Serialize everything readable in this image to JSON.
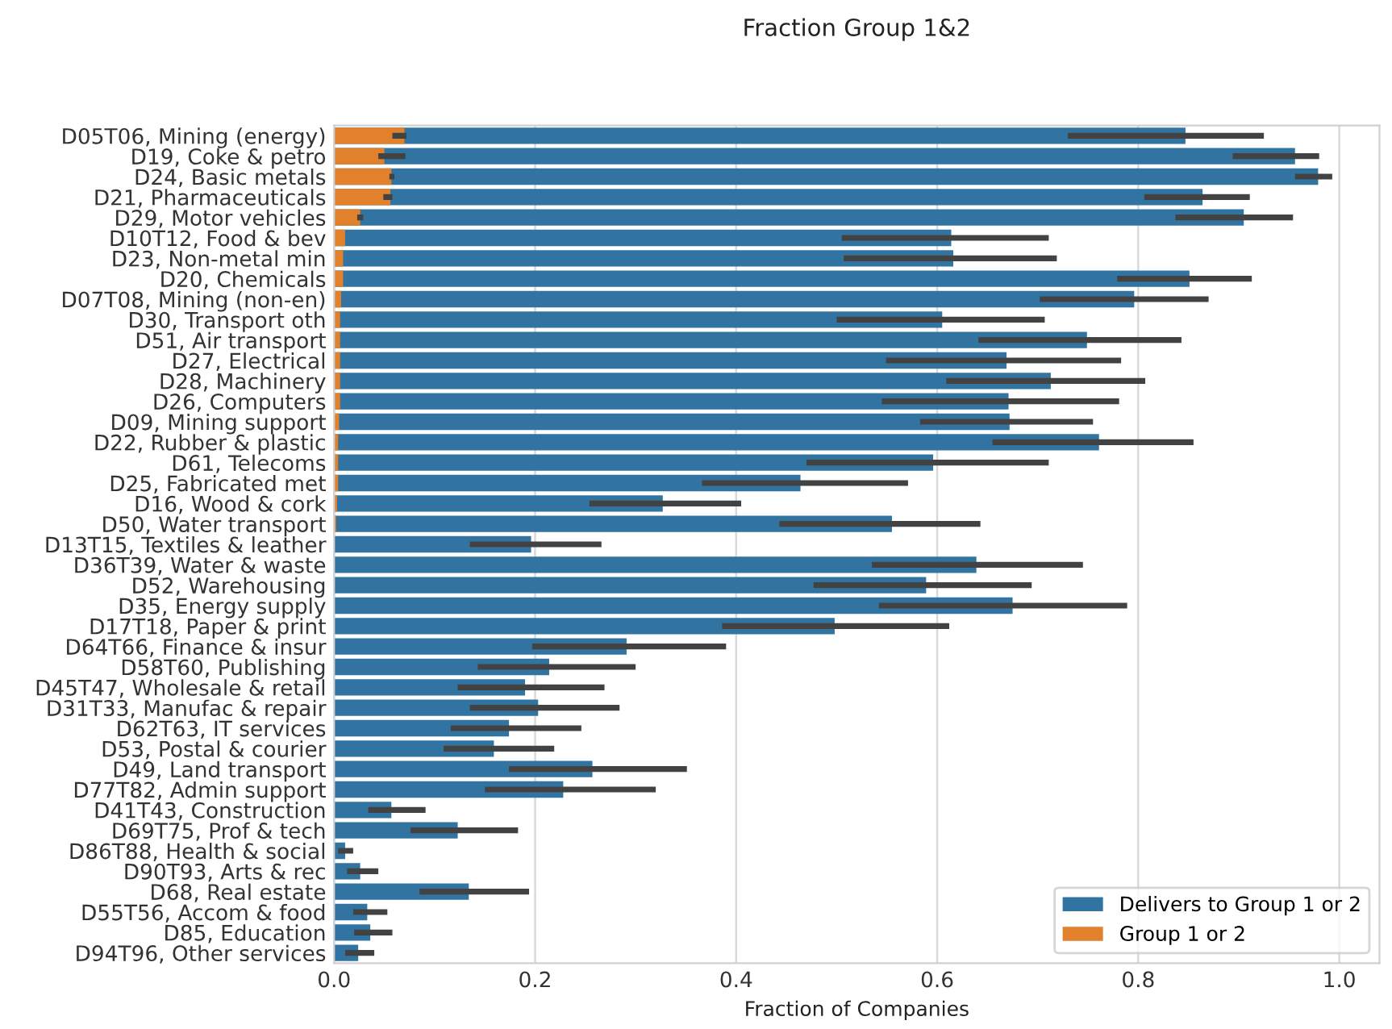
{
  "chart_data": {
    "type": "bar",
    "orientation": "horizontal",
    "title": "Fraction Group 1&2",
    "xlabel": "Fraction of Companies",
    "categories": [
      "D05T06, Mining (energy)",
      "D19, Coke & petro",
      "D24, Basic metals",
      "D21, Pharmaceuticals",
      "D29, Motor vehicles",
      "D10T12, Food & bev",
      "D23, Non-metal min",
      "D20, Chemicals",
      "D07T08, Mining (non-en)",
      "D30, Transport oth",
      "D51, Air transport",
      "D27, Electrical",
      "D28, Machinery",
      "D26, Computers",
      "D09, Mining support",
      "D22, Rubber & plastic",
      "D61, Telecoms",
      "D25, Fabricated met",
      "D16, Wood & cork",
      "D50, Water transport",
      "D13T15, Textiles & leather",
      "D36T39, Water & waste",
      "D52, Warehousing",
      "D35, Energy supply",
      "D17T18, Paper & print",
      "D64T66, Finance & insur",
      "D58T60, Publishing",
      "D45T47, Wholesale & retail",
      "D31T33, Manufac & repair",
      "D62T63, IT services",
      "D53, Postal & courier",
      "D49, Land transport",
      "D77T82, Admin support",
      "D41T43, Construction",
      "D69T75, Prof & tech",
      "D86T88, Health & social",
      "D90T93, Arts & rec",
      "D68, Real estate",
      "D55T56, Accom & food",
      "D85, Education",
      "D94T96, Other services"
    ],
    "series": [
      {
        "name": "Delivers to Group 1 or 2",
        "color": "#3274a1",
        "values": [
          0.847,
          0.956,
          0.979,
          0.864,
          0.905,
          0.614,
          0.616,
          0.851,
          0.796,
          0.605,
          0.749,
          0.669,
          0.713,
          0.671,
          0.672,
          0.761,
          0.596,
          0.464,
          0.327,
          0.555,
          0.196,
          0.639,
          0.589,
          0.675,
          0.498,
          0.291,
          0.214,
          0.19,
          0.203,
          0.174,
          0.159,
          0.257,
          0.228,
          0.057,
          0.123,
          0.011,
          0.026,
          0.134,
          0.033,
          0.036,
          0.024
        ],
        "errors": [
          [
            0.73,
            0.925
          ],
          [
            0.894,
            0.98
          ],
          [
            0.956,
            0.993
          ],
          [
            0.806,
            0.911
          ],
          [
            0.837,
            0.954
          ],
          [
            0.505,
            0.711
          ],
          [
            0.507,
            0.719
          ],
          [
            0.779,
            0.913
          ],
          [
            0.702,
            0.87
          ],
          [
            0.5,
            0.707
          ],
          [
            0.641,
            0.843
          ],
          [
            0.549,
            0.783
          ],
          [
            0.609,
            0.807
          ],
          [
            0.545,
            0.781
          ],
          [
            0.583,
            0.755
          ],
          [
            0.655,
            0.855
          ],
          [
            0.47,
            0.711
          ],
          [
            0.366,
            0.571
          ],
          [
            0.254,
            0.405
          ],
          [
            0.443,
            0.643
          ],
          [
            0.135,
            0.266
          ],
          [
            0.535,
            0.745
          ],
          [
            0.477,
            0.694
          ],
          [
            0.542,
            0.789
          ],
          [
            0.386,
            0.612
          ],
          [
            0.197,
            0.39
          ],
          [
            0.143,
            0.3
          ],
          [
            0.123,
            0.269
          ],
          [
            0.135,
            0.284
          ],
          [
            0.116,
            0.246
          ],
          [
            0.109,
            0.219
          ],
          [
            0.174,
            0.351
          ],
          [
            0.15,
            0.32
          ],
          [
            0.034,
            0.091
          ],
          [
            0.076,
            0.183
          ],
          [
            0.004,
            0.019
          ],
          [
            0.013,
            0.044
          ],
          [
            0.085,
            0.194
          ],
          [
            0.019,
            0.053
          ],
          [
            0.02,
            0.058
          ],
          [
            0.011,
            0.04
          ]
        ]
      },
      {
        "name": "Group 1 or 2",
        "color": "#e1812c",
        "values": [
          0.07,
          0.05,
          0.057,
          0.056,
          0.026,
          0.011,
          0.009,
          0.009,
          0.007,
          0.006,
          0.006,
          0.006,
          0.006,
          0.006,
          0.005,
          0.004,
          0.004,
          0.004,
          0.003,
          0.002,
          null,
          null,
          null,
          null,
          null,
          null,
          null,
          null,
          null,
          null,
          null,
          null,
          null,
          null,
          null,
          null,
          null,
          null,
          null,
          null,
          null
        ],
        "errors": [
          [
            0.058,
            0.072
          ],
          [
            0.044,
            0.071
          ],
          [
            0.055,
            0.06
          ],
          [
            0.049,
            0.058
          ],
          [
            0.023,
            0.029
          ],
          null,
          null,
          null,
          null,
          null,
          null,
          null,
          null,
          null,
          null,
          null,
          null,
          null,
          null,
          null,
          null,
          null,
          null,
          null,
          null,
          null,
          null,
          null,
          null,
          null,
          null,
          null,
          null,
          null,
          null,
          null,
          null,
          null,
          null,
          null,
          null
        ]
      }
    ],
    "xlim": [
      0,
      1.04
    ],
    "xticks": [
      {
        "value": 0,
        "label": "0.0"
      },
      {
        "value": 0.2,
        "label": "0.2"
      },
      {
        "value": 0.4,
        "label": "0.4"
      },
      {
        "value": 0.6,
        "label": "0.6"
      },
      {
        "value": 0.8,
        "label": "0.8"
      },
      {
        "value": 1,
        "label": "1.0"
      }
    ],
    "grid": "x",
    "legend": "bottom right"
  }
}
